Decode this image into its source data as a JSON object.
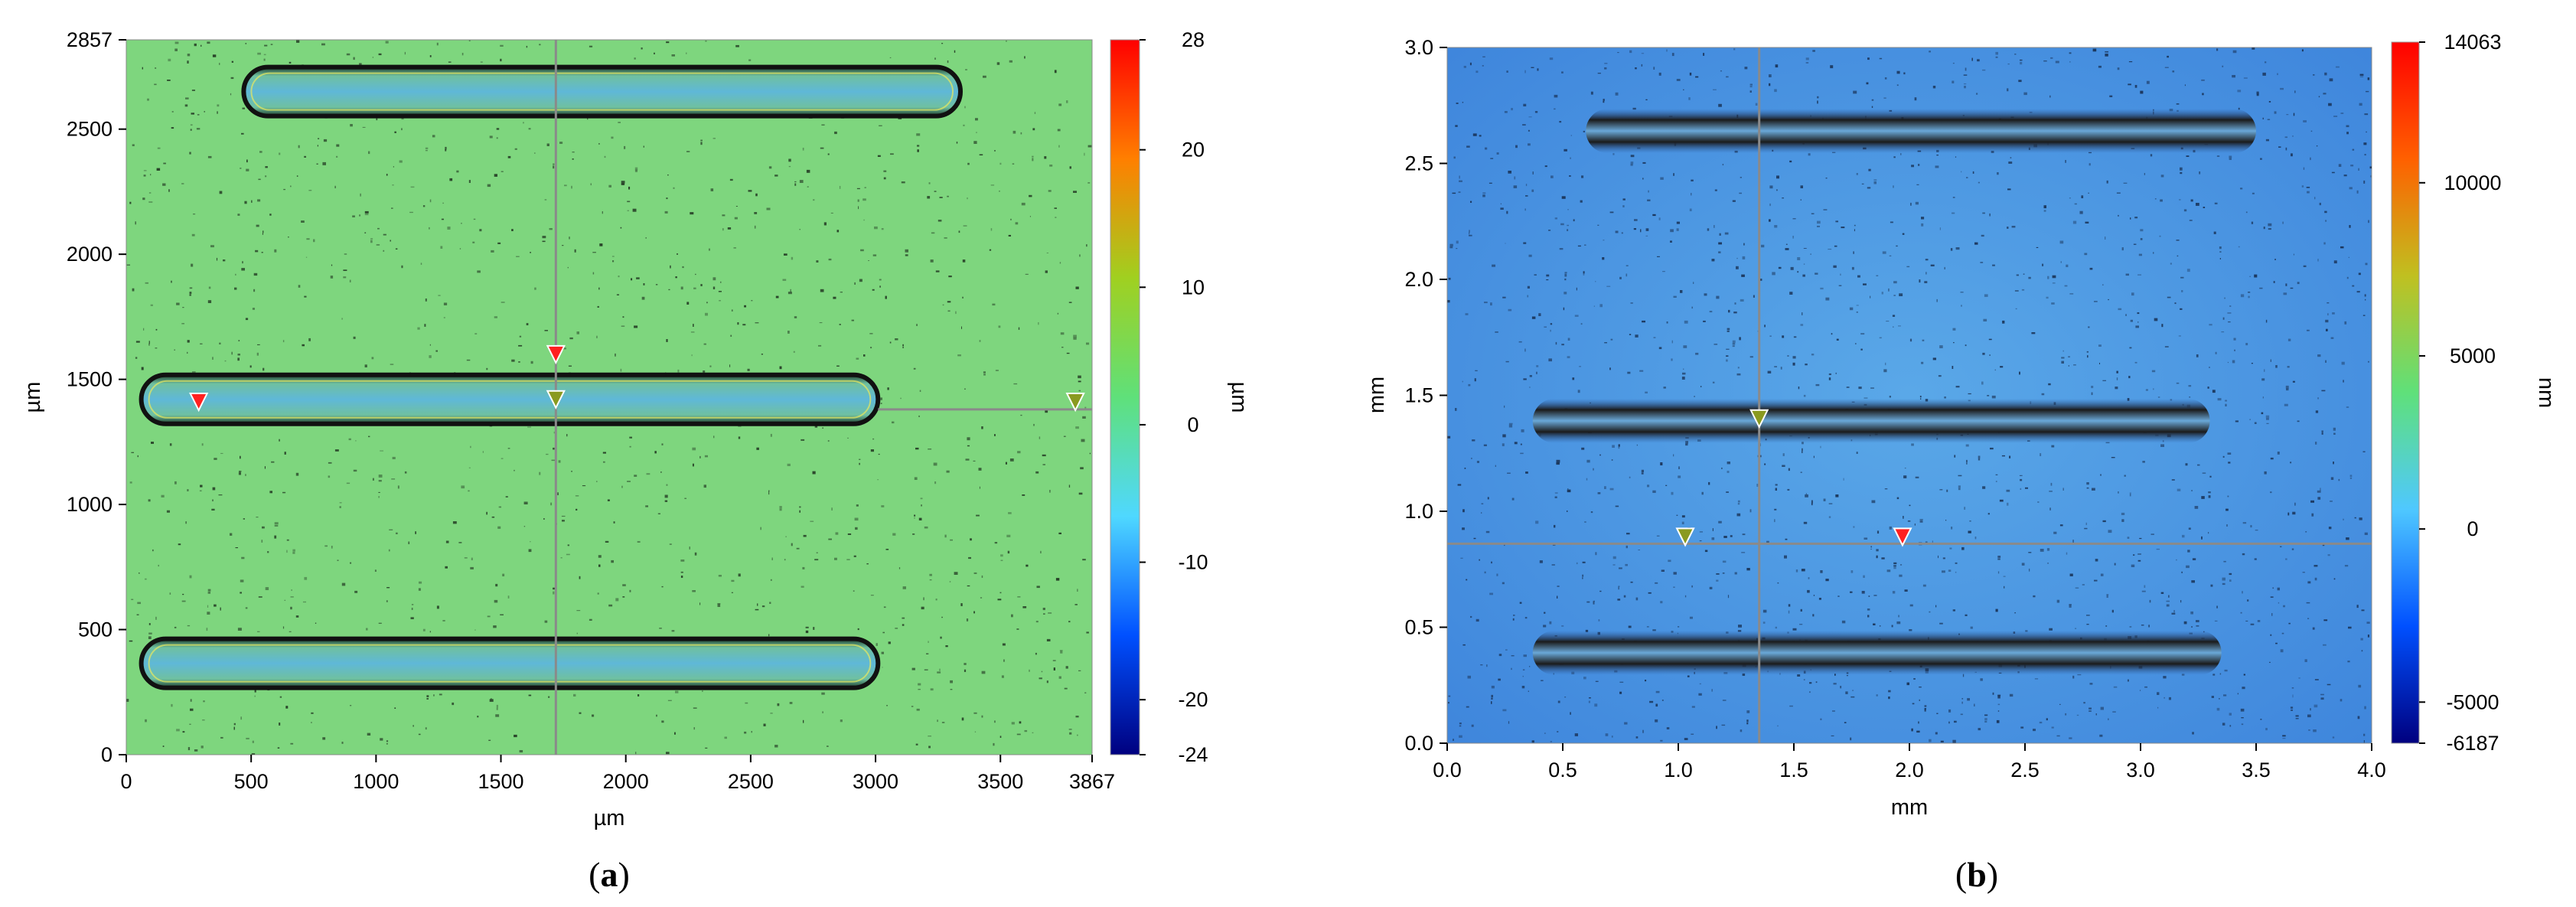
{
  "chart_data": [
    {
      "type": "heatmap",
      "panel_label": "(a)",
      "panel_letter": "a",
      "xlabel": "µm",
      "ylabel": "µm",
      "xlim": [
        0,
        3867
      ],
      "ylim": [
        0,
        2857
      ],
      "xticks": [
        0,
        500,
        1000,
        1500,
        2000,
        2500,
        3000,
        3500,
        3867
      ],
      "yticks": [
        0,
        500,
        1000,
        1500,
        2000,
        2500,
        2857
      ],
      "colorbar": {
        "label": "µm",
        "range": [
          -24,
          28
        ],
        "ticks": [
          28,
          20,
          10,
          0,
          -10,
          -20,
          -24
        ],
        "colors": [
          "#00007f",
          "#0050ff",
          "#4fd8ff",
          "#5fe07a",
          "#a0d020",
          "#ff7f00",
          "#ff0000"
        ]
      },
      "background_color": "#7ed67e",
      "cross_section_lines": {
        "vertical_x": 1720,
        "horizontal_y": 1380
      },
      "tracks": [
        {
          "x_start": 470,
          "x_end": 3340,
          "y_center": 2650
        },
        {
          "x_start": 60,
          "x_end": 3010,
          "y_center": 1420
        },
        {
          "x_start": 60,
          "x_end": 3010,
          "y_center": 365
        }
      ],
      "markers": [
        {
          "x": 290,
          "y": 1410,
          "color": "red"
        },
        {
          "x": 1720,
          "y": 1600,
          "color": "red"
        },
        {
          "x": 1720,
          "y": 1420,
          "color": "olive"
        },
        {
          "x": 3800,
          "y": 1410,
          "color": "olive"
        }
      ]
    },
    {
      "type": "heatmap",
      "panel_label": "(b)",
      "panel_letter": "b",
      "xlabel": "mm",
      "ylabel": "mm",
      "xlim": [
        0.0,
        4.0
      ],
      "ylim": [
        0.0,
        3.0
      ],
      "xticks": [
        "0.0",
        "0.5",
        "1.0",
        "1.5",
        "2.0",
        "2.5",
        "3.0",
        "3.5",
        "4.0"
      ],
      "yticks": [
        "0.0",
        "0.5",
        "1.0",
        "1.5",
        "2.0",
        "2.5",
        "3.0"
      ],
      "colorbar": {
        "label": "nm",
        "range": [
          -6187,
          14063
        ],
        "ticks": [
          14063,
          10000,
          5000,
          0,
          -5000,
          -6187
        ],
        "colors": [
          "#00007f",
          "#0050ff",
          "#4fc8ff",
          "#5fe07a",
          "#c0c020",
          "#ff6000",
          "#ff0000"
        ]
      },
      "background_color": "#4a90e2",
      "cross_section_lines": {
        "vertical_x": 1.35,
        "horizontal_y": 0.86
      },
      "tracks": [
        {
          "x_start": 0.6,
          "x_end": 3.5,
          "y_center": 2.64
        },
        {
          "x_start": 0.37,
          "x_end": 3.3,
          "y_center": 1.39
        },
        {
          "x_start": 0.37,
          "x_end": 3.35,
          "y_center": 0.39
        }
      ],
      "markers": [
        {
          "x": 1.35,
          "y": 1.4,
          "color": "olive"
        },
        {
          "x": 1.03,
          "y": 0.89,
          "color": "olive"
        },
        {
          "x": 1.97,
          "y": 0.89,
          "color": "red"
        }
      ]
    }
  ]
}
